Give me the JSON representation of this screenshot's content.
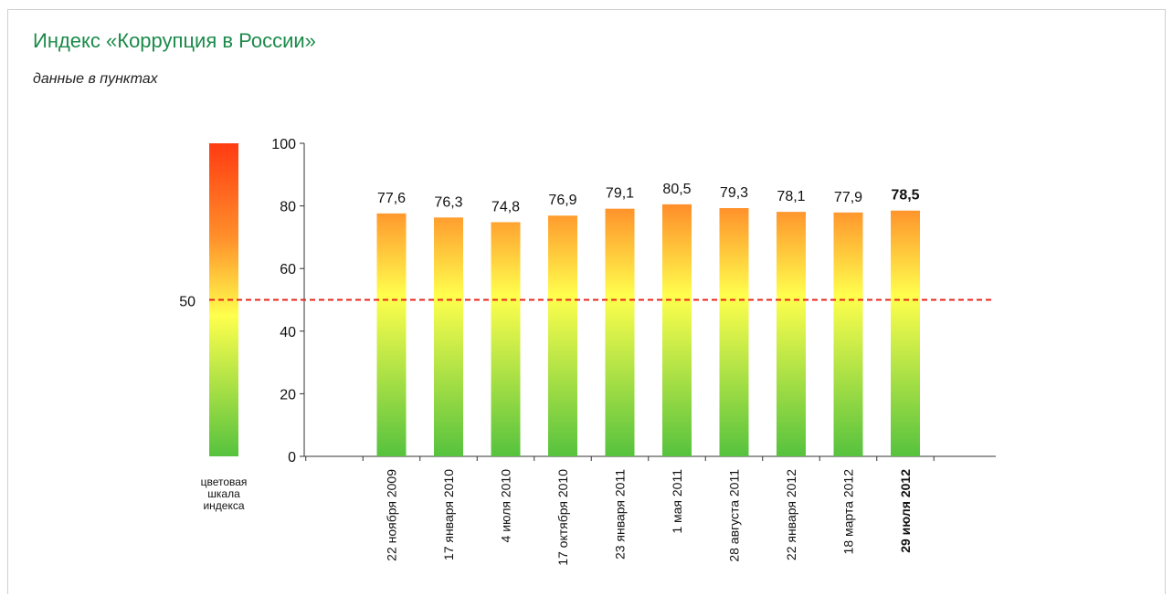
{
  "title": "Индекс «Коррупция в России»",
  "subtitle": "данные в пунктах",
  "scale": {
    "label_lines": [
      "цветовая",
      "шкала",
      "индекса"
    ],
    "threshold_label": "50",
    "threshold_value": 50,
    "colors": {
      "top": "#ff3b12",
      "upper": "#ff8f2a",
      "mid": "#ffff4d",
      "bottom": "#56c23e"
    }
  },
  "threshold_line_color": "#e8261c",
  "chart_data": {
    "type": "bar",
    "title": "Индекс «Коррупция в России»",
    "subtitle": "данные в пунктах",
    "categories": [
      "22 ноября 2009",
      "17 января 2010",
      "4 июля 2010",
      "17 октября 2010",
      "23 января 2011",
      "1 мая 2011",
      "28 августа 2011",
      "22 января 2012",
      "18 марта 2012",
      "29 июля 2012"
    ],
    "values": [
      77.6,
      76.3,
      74.8,
      76.9,
      79.1,
      80.5,
      79.3,
      78.1,
      77.9,
      78.5
    ],
    "value_labels": [
      "77,6",
      "76,3",
      "74,8",
      "76,9",
      "79,1",
      "80,5",
      "79,3",
      "78,1",
      "77,9",
      "78,5"
    ],
    "highlight_index": 9,
    "ylim": [
      0,
      100
    ],
    "yticks": [
      0,
      20,
      40,
      60,
      80,
      100
    ],
    "reference_line": 50,
    "xlabel": "",
    "ylabel": ""
  }
}
